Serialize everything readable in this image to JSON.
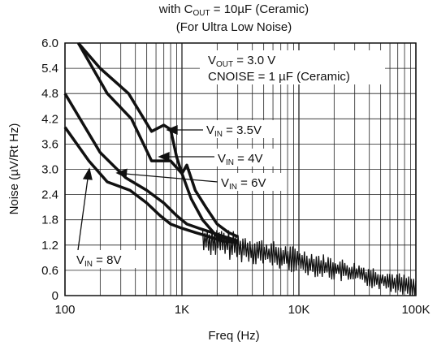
{
  "chart_data": {
    "type": "line",
    "title_line1_pre": "with C",
    "title_line1_sub": "OUT",
    "title_line1_post": " = 10µF (Ceramic)",
    "title_line2": "(For Ultra Low Noise)",
    "xlabel": "Freq (Hz)",
    "ylabel": "Noise (µV/Rt Hz)",
    "x_scale": "log",
    "xlim": [
      100,
      100000
    ],
    "ylim": [
      0,
      6.0
    ],
    "x_ticks": [
      {
        "value": 100,
        "label": "100"
      },
      {
        "value": 1000,
        "label": "1K"
      },
      {
        "value": 10000,
        "label": "10K"
      },
      {
        "value": 100000,
        "label": "100K"
      }
    ],
    "y_ticks": [
      {
        "value": 0,
        "label": "0"
      },
      {
        "value": 0.6,
        "label": "0.6"
      },
      {
        "value": 1.2,
        "label": "1.2"
      },
      {
        "value": 1.8,
        "label": "1.8"
      },
      {
        "value": 2.4,
        "label": "2.4"
      },
      {
        "value": 3.0,
        "label": "3.0"
      },
      {
        "value": 3.6,
        "label": "3.6"
      },
      {
        "value": 4.2,
        "label": "4.2"
      },
      {
        "value": 4.8,
        "label": "4.8"
      },
      {
        "value": 5.4,
        "label": "5.4"
      },
      {
        "value": 6.0,
        "label": "6.0"
      }
    ],
    "grid": true,
    "conditions": {
      "line1_pre": "V",
      "line1_sub": "OUT",
      "line1_post": " = 3.0 V",
      "line2": "CNOISE = 1 µF (Ceramic)"
    },
    "series": [
      {
        "name_pre": "V",
        "name_sub": "IN",
        "name_post": " = 3.5V",
        "x": [
          130,
          200,
          350,
          550,
          700,
          800,
          900,
          1000,
          1200,
          1500,
          2000,
          3000
        ],
        "y": [
          6.0,
          5.4,
          4.8,
          3.9,
          4.05,
          3.95,
          3.3,
          2.9,
          2.3,
          1.8,
          1.4,
          1.3
        ]
      },
      {
        "name_pre": "V",
        "name_sub": "IN",
        "name_post": " = 4V",
        "x": [
          130,
          230,
          370,
          550,
          800,
          1000,
          1100,
          1300,
          1600,
          2000,
          2500,
          3000
        ],
        "y": [
          6.0,
          4.8,
          4.2,
          3.2,
          3.2,
          2.9,
          3.1,
          2.5,
          2.1,
          1.7,
          1.5,
          1.4
        ]
      },
      {
        "name_pre": "V",
        "name_sub": "IN",
        "name_post": " = 6V",
        "x": [
          100,
          200,
          330,
          500,
          700,
          900,
          1100,
          1400,
          1800,
          2300,
          3000
        ],
        "y": [
          4.8,
          3.4,
          2.8,
          2.5,
          2.2,
          1.9,
          1.7,
          1.6,
          1.5,
          1.4,
          1.3
        ]
      },
      {
        "name_pre": "V",
        "name_sub": "IN",
        "name_post": " = 8V",
        "x": [
          100,
          160,
          230,
          360,
          500,
          650,
          800,
          1000,
          1300,
          1700,
          2200,
          3000
        ],
        "y": [
          4.0,
          3.2,
          2.7,
          2.5,
          2.2,
          1.9,
          1.7,
          1.6,
          1.5,
          1.4,
          1.3,
          1.25
        ]
      }
    ],
    "combined_noise_band": {
      "x_start": 1500,
      "x_end": 100000,
      "y_start": 1.35,
      "y_end": 0.2,
      "amplitude": 0.25
    }
  }
}
